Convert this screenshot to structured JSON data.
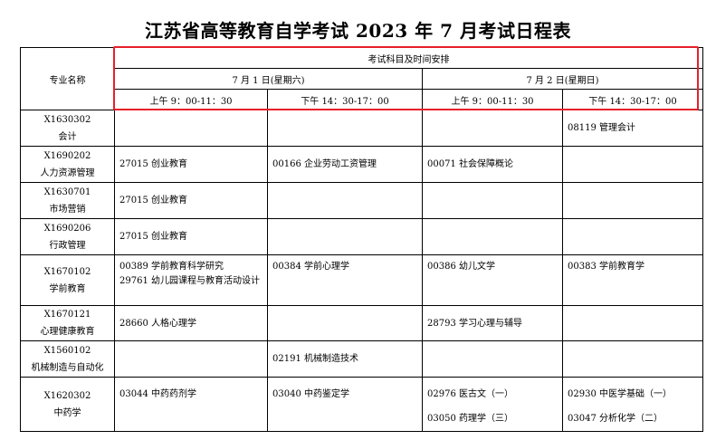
{
  "title": "江苏省高等教育自学考试 2023 年 7 月考试日程表",
  "header": {
    "major_label": "专业名称",
    "group_label": "考试科目及时间安排",
    "days": [
      "7 月 1 日(星期六)",
      "7 月 2 日(星期日)"
    ],
    "sessions": [
      "上午 9：00-11：30",
      "下午 14：30-17：00",
      "上午 9：00-11：30",
      "下午 14：30-17：00"
    ]
  },
  "rows": [
    {
      "code": "X1630302",
      "name": "会计",
      "cells": [
        [],
        [],
        [],
        [
          "08119 管理会计"
        ]
      ]
    },
    {
      "code": "X1690202",
      "name": "人力资源管理",
      "cells": [
        [
          "27015 创业教育"
        ],
        [
          "00166 企业劳动工资管理"
        ],
        [
          "00071 社会保障概论"
        ],
        []
      ]
    },
    {
      "code": "X1630701",
      "name": "市场营销",
      "cells": [
        [
          "27015 创业教育"
        ],
        [],
        [],
        []
      ]
    },
    {
      "code": "X1690206",
      "name": "行政管理",
      "cells": [
        [
          "27015 创业教育"
        ],
        [],
        [],
        []
      ]
    },
    {
      "code": "X1670102",
      "name": "学前教育",
      "cells": [
        [
          "00389 学前教育科学研究",
          "29761 幼儿园课程与教育活动设计"
        ],
        [
          "00384 学前心理学"
        ],
        [
          "00386 幼儿文学"
        ],
        [
          "00383 学前教育学"
        ]
      ]
    },
    {
      "code": "X1670121",
      "name": "心理健康教育",
      "cells": [
        [
          "28660 人格心理学"
        ],
        [],
        [
          "28793 学习心理与辅导"
        ],
        []
      ]
    },
    {
      "code": "X1560102",
      "name": "机械制造与自动化",
      "cells": [
        [],
        [
          "02191 机械制造技术"
        ],
        [],
        []
      ]
    },
    {
      "code": "X1620302",
      "name": "中药学",
      "cells": [
        [
          "03044 中药药剂学"
        ],
        [
          "03040 中药鉴定学"
        ],
        [
          "02976 医古文（一）",
          "03050 药理学（三）"
        ],
        [
          "02930 中医学基础（一）",
          "03047 分析化学（二）"
        ]
      ]
    }
  ],
  "colors": {
    "highlight_border": "#e8202a"
  }
}
